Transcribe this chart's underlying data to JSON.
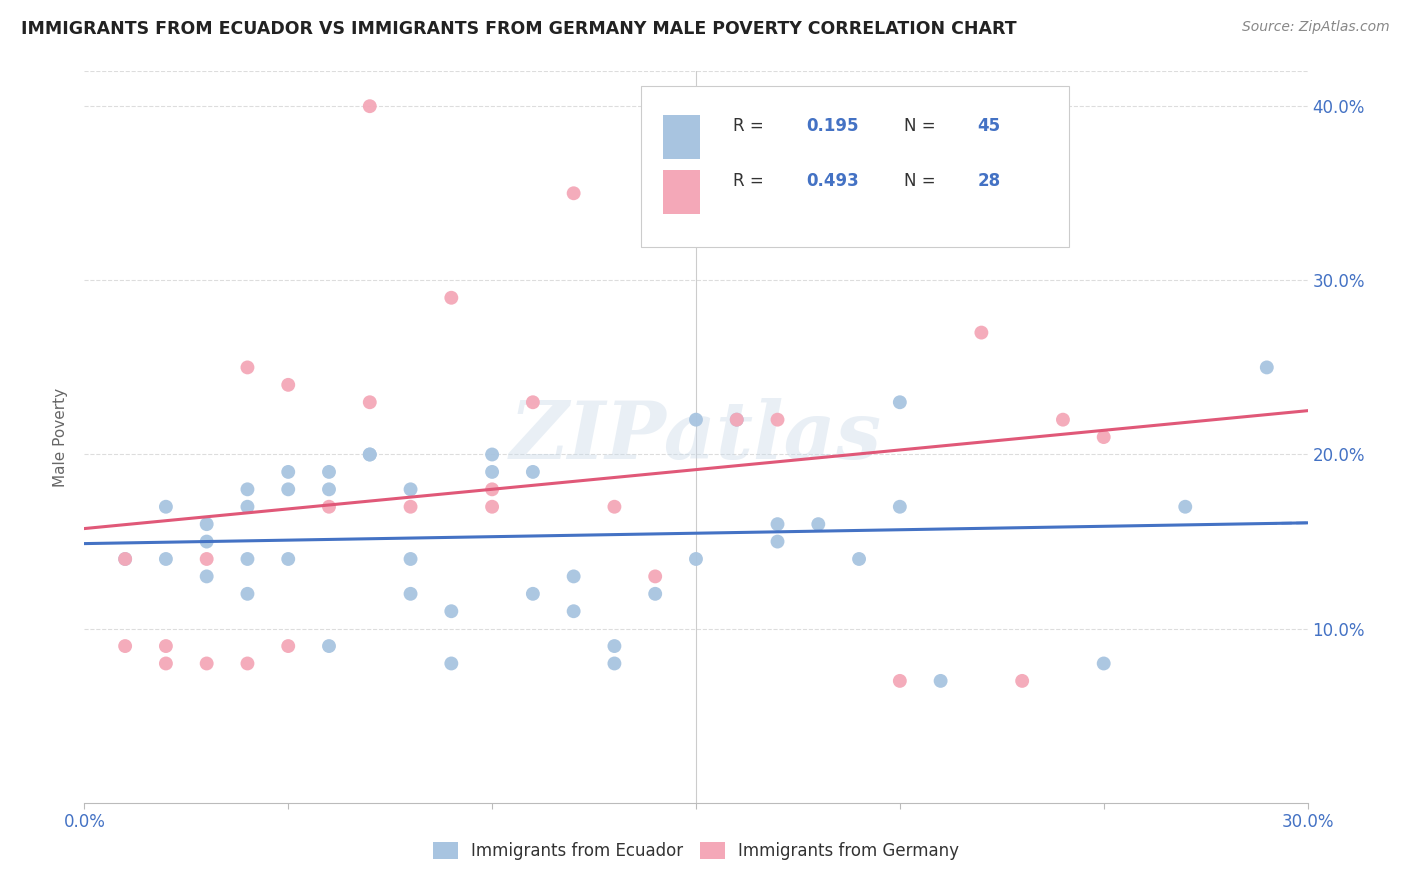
{
  "title": "IMMIGRANTS FROM ECUADOR VS IMMIGRANTS FROM GERMANY MALE POVERTY CORRELATION CHART",
  "source": "Source: ZipAtlas.com",
  "ylabel": "Male Poverty",
  "x_min": 0.0,
  "x_max": 0.3,
  "y_min": 0.0,
  "y_max": 0.42,
  "x_ticks": [
    0.0,
    0.05,
    0.1,
    0.15,
    0.2,
    0.25,
    0.3
  ],
  "y_ticks": [
    0.0,
    0.1,
    0.2,
    0.3,
    0.4
  ],
  "ecuador_color": "#a8c4e0",
  "germany_color": "#f4a8b8",
  "ecuador_line_color": "#4472c4",
  "germany_line_color": "#e05878",
  "ecuador_R": "0.195",
  "ecuador_N": "45",
  "germany_R": "0.493",
  "germany_N": "28",
  "watermark": "ZIPatlas",
  "ecuador_scatter_x": [
    0.01,
    0.02,
    0.02,
    0.03,
    0.03,
    0.03,
    0.04,
    0.04,
    0.04,
    0.04,
    0.05,
    0.05,
    0.05,
    0.06,
    0.06,
    0.06,
    0.07,
    0.07,
    0.08,
    0.08,
    0.08,
    0.09,
    0.09,
    0.1,
    0.1,
    0.11,
    0.11,
    0.12,
    0.12,
    0.13,
    0.13,
    0.14,
    0.15,
    0.15,
    0.16,
    0.17,
    0.17,
    0.18,
    0.19,
    0.2,
    0.2,
    0.21,
    0.25,
    0.27,
    0.29
  ],
  "ecuador_scatter_y": [
    0.14,
    0.14,
    0.17,
    0.13,
    0.15,
    0.16,
    0.17,
    0.18,
    0.14,
    0.12,
    0.19,
    0.18,
    0.14,
    0.09,
    0.18,
    0.19,
    0.2,
    0.2,
    0.12,
    0.18,
    0.14,
    0.11,
    0.08,
    0.2,
    0.19,
    0.12,
    0.19,
    0.13,
    0.11,
    0.09,
    0.08,
    0.12,
    0.14,
    0.22,
    0.22,
    0.15,
    0.16,
    0.16,
    0.14,
    0.23,
    0.17,
    0.07,
    0.08,
    0.17,
    0.25
  ],
  "germany_scatter_x": [
    0.01,
    0.01,
    0.02,
    0.02,
    0.03,
    0.03,
    0.04,
    0.04,
    0.05,
    0.05,
    0.06,
    0.07,
    0.07,
    0.08,
    0.09,
    0.1,
    0.1,
    0.11,
    0.12,
    0.13,
    0.14,
    0.16,
    0.17,
    0.2,
    0.22,
    0.23,
    0.24,
    0.25
  ],
  "germany_scatter_y": [
    0.09,
    0.14,
    0.08,
    0.09,
    0.08,
    0.14,
    0.08,
    0.25,
    0.09,
    0.24,
    0.17,
    0.4,
    0.23,
    0.17,
    0.29,
    0.18,
    0.17,
    0.23,
    0.35,
    0.17,
    0.13,
    0.22,
    0.22,
    0.07,
    0.27,
    0.07,
    0.22,
    0.21
  ]
}
